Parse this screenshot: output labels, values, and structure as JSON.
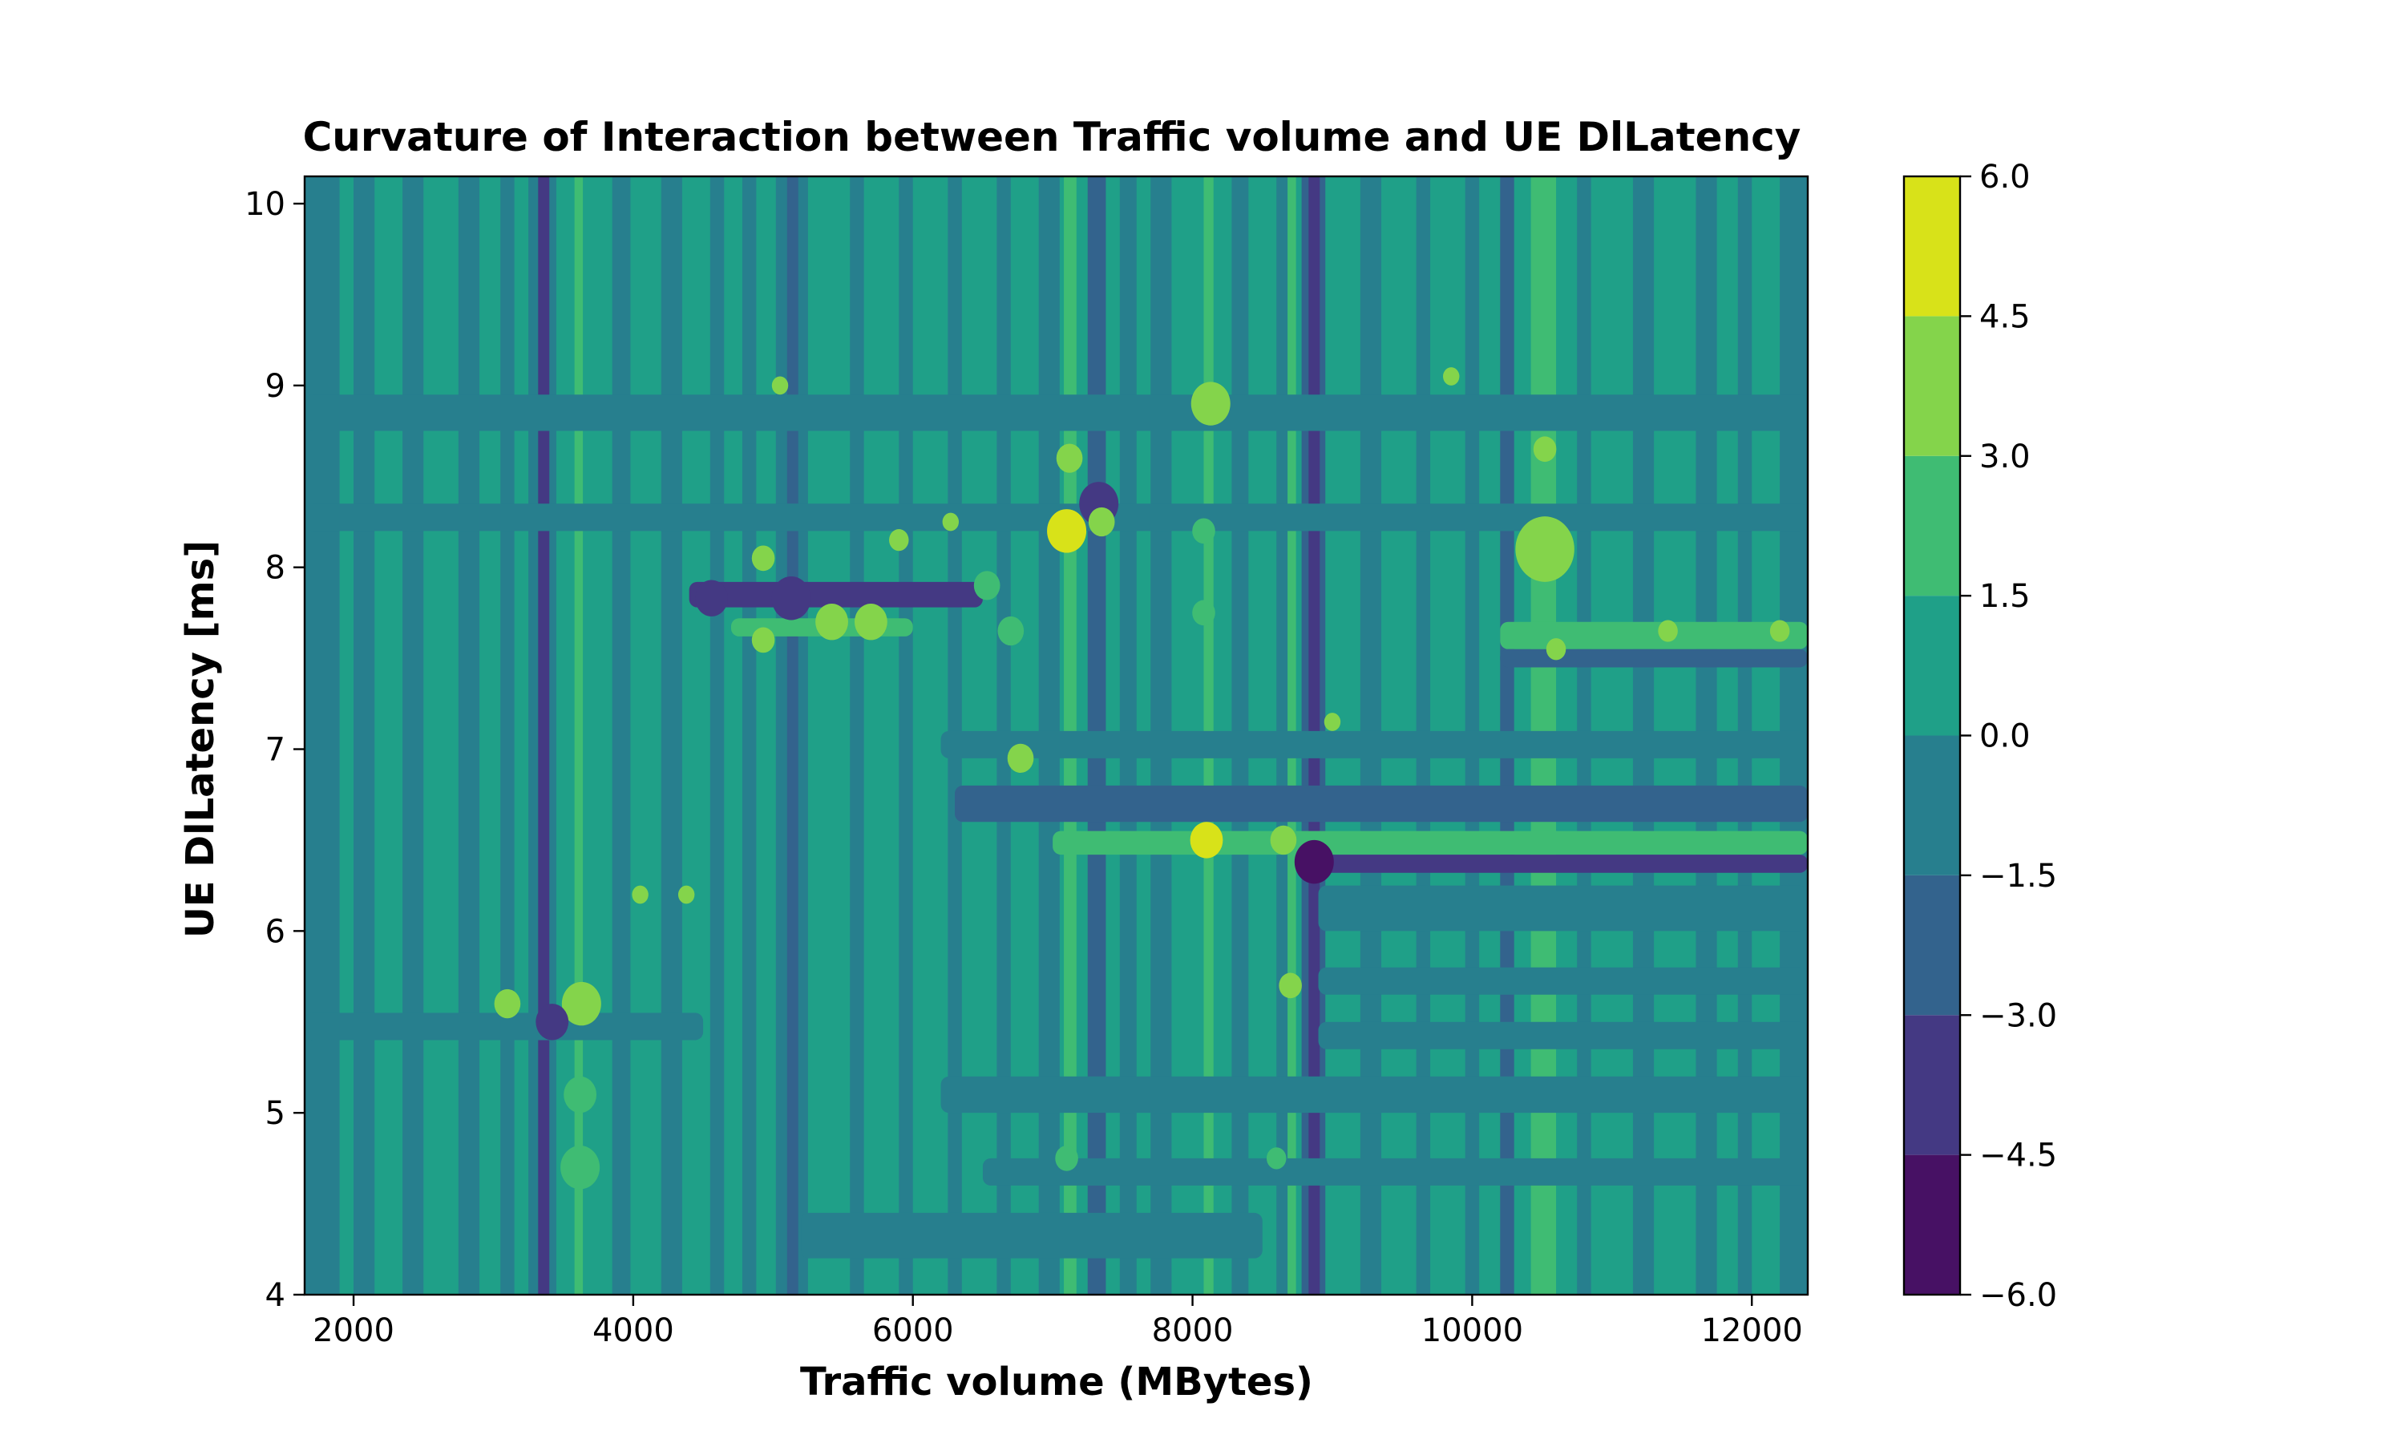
{
  "chart_data": {
    "type": "heatmap",
    "subtype": "filled-contour",
    "title": "Curvature of Interaction between Traffic volume and UE DlLatency",
    "xlabel": "Traffic volume (MBytes)",
    "ylabel": "UE DlLatency [ms]",
    "xlim": [
      1650,
      12400
    ],
    "ylim": [
      4.0,
      10.15
    ],
    "x_ticks": [
      2000,
      4000,
      6000,
      8000,
      10000,
      12000
    ],
    "y_ticks": [
      4,
      5,
      6,
      7,
      8,
      9,
      10
    ],
    "colorbar": {
      "levels": [
        -6.0,
        -4.5,
        -3.0,
        -1.5,
        0.0,
        1.5,
        3.0,
        4.5,
        6.0
      ],
      "tick_labels": [
        "−6.0",
        "−4.5",
        "−3.0",
        "−1.5",
        "0.0",
        "1.5",
        "3.0",
        "4.5",
        "6.0"
      ],
      "colors": [
        "#471164",
        "#443983",
        "#33638d",
        "#277f8e",
        "#1fa088",
        "#3fbc73",
        "#84d44b",
        "#d8e219"
      ]
    },
    "background_value": 0.7,
    "vertical_bands": [
      {
        "x0": 1650,
        "x1": 1900,
        "value": -0.5
      },
      {
        "x0": 2000,
        "x1": 2150,
        "value": -0.6
      },
      {
        "x0": 2350,
        "x1": 2500,
        "value": -0.8
      },
      {
        "x0": 2750,
        "x1": 2900,
        "value": -0.7
      },
      {
        "x0": 3050,
        "x1": 3150,
        "value": -0.6
      },
      {
        "x0": 3250,
        "x1": 3450,
        "value": -1.0
      },
      {
        "x0": 3320,
        "x1": 3400,
        "value": -3.2
      },
      {
        "x0": 3580,
        "x1": 3640,
        "value": 2.6
      },
      {
        "x0": 3850,
        "x1": 3980,
        "value": -0.6
      },
      {
        "x0": 4200,
        "x1": 4350,
        "value": -0.7
      },
      {
        "x0": 4550,
        "x1": 4650,
        "value": -1.0
      },
      {
        "x0": 4780,
        "x1": 4880,
        "value": -0.8
      },
      {
        "x0": 5020,
        "x1": 5250,
        "value": -1.0
      },
      {
        "x0": 5100,
        "x1": 5180,
        "value": -2.6
      },
      {
        "x0": 5550,
        "x1": 5650,
        "value": -0.8
      },
      {
        "x0": 5900,
        "x1": 6000,
        "value": -0.7
      },
      {
        "x0": 6250,
        "x1": 6350,
        "value": -0.8
      },
      {
        "x0": 6600,
        "x1": 6700,
        "value": -0.8
      },
      {
        "x0": 6900,
        "x1": 7050,
        "value": -1.0
      },
      {
        "x0": 7080,
        "x1": 7170,
        "value": 2.4
      },
      {
        "x0": 7250,
        "x1": 7380,
        "value": -2.6
      },
      {
        "x0": 7480,
        "x1": 7600,
        "value": -0.8
      },
      {
        "x0": 7700,
        "x1": 7850,
        "value": -0.9
      },
      {
        "x0": 8080,
        "x1": 8150,
        "value": 2.0
      },
      {
        "x0": 8280,
        "x1": 8400,
        "value": -1.0
      },
      {
        "x0": 8600,
        "x1": 8680,
        "value": -0.7
      },
      {
        "x0": 8680,
        "x1": 8740,
        "value": 2.7
      },
      {
        "x0": 8780,
        "x1": 8950,
        "value": -2.0
      },
      {
        "x0": 8830,
        "x1": 8910,
        "value": -4.0
      },
      {
        "x0": 9200,
        "x1": 9350,
        "value": -0.8
      },
      {
        "x0": 9600,
        "x1": 9700,
        "value": -0.8
      },
      {
        "x0": 9950,
        "x1": 10050,
        "value": -0.8
      },
      {
        "x0": 10200,
        "x1": 10300,
        "value": -1.8
      },
      {
        "x0": 10420,
        "x1": 10600,
        "value": 2.6
      },
      {
        "x0": 10750,
        "x1": 10850,
        "value": -0.9
      },
      {
        "x0": 11150,
        "x1": 11300,
        "value": -0.7
      },
      {
        "x0": 11600,
        "x1": 11750,
        "value": -0.8
      },
      {
        "x0": 11900,
        "x1": 12000,
        "value": -0.7
      },
      {
        "x0": 12200,
        "x1": 12400,
        "value": -0.8
      }
    ],
    "horizontal_bands": [
      {
        "y0": 8.75,
        "y1": 8.95,
        "x0": 1650,
        "x1": 12400,
        "value": -0.6
      },
      {
        "y0": 8.2,
        "y1": 8.35,
        "x0": 1650,
        "x1": 12400,
        "value": -0.5
      },
      {
        "y0": 7.78,
        "y1": 7.92,
        "x0": 4400,
        "x1": 6500,
        "value": -3.2
      },
      {
        "y0": 7.62,
        "y1": 7.72,
        "x0": 4700,
        "x1": 6000,
        "value": 1.8
      },
      {
        "y0": 7.55,
        "y1": 7.7,
        "x0": 10200,
        "x1": 12400,
        "value": 1.8
      },
      {
        "y0": 7.45,
        "y1": 7.55,
        "x0": 10200,
        "x1": 12400,
        "value": -1.6
      },
      {
        "y0": 6.95,
        "y1": 7.1,
        "x0": 6200,
        "x1": 12400,
        "value": -0.7
      },
      {
        "y0": 6.6,
        "y1": 6.8,
        "x0": 6300,
        "x1": 12400,
        "value": -1.8
      },
      {
        "y0": 6.42,
        "y1": 6.55,
        "x0": 7000,
        "x1": 12400,
        "value": 2.3
      },
      {
        "y0": 6.32,
        "y1": 6.42,
        "x0": 8750,
        "x1": 12400,
        "value": -3.8
      },
      {
        "y0": 6.0,
        "y1": 6.25,
        "x0": 8900,
        "x1": 12400,
        "value": -0.9
      },
      {
        "y0": 5.65,
        "y1": 5.8,
        "x0": 8900,
        "x1": 12400,
        "value": -0.8
      },
      {
        "y0": 5.4,
        "y1": 5.55,
        "x0": 1650,
        "x1": 4500,
        "value": -0.7
      },
      {
        "y0": 5.35,
        "y1": 5.5,
        "x0": 8900,
        "x1": 12400,
        "value": -0.8
      },
      {
        "y0": 5.0,
        "y1": 5.2,
        "x0": 6200,
        "x1": 12400,
        "value": -0.6
      },
      {
        "y0": 4.6,
        "y1": 4.75,
        "x0": 6500,
        "x1": 12400,
        "value": -0.6
      },
      {
        "y0": 4.2,
        "y1": 4.45,
        "x0": 5200,
        "x1": 8500,
        "value": -0.7
      }
    ],
    "spots": [
      {
        "x": 7100,
        "y": 8.2,
        "r": 0.12,
        "value": 4.8
      },
      {
        "x": 7330,
        "y": 8.35,
        "r": 0.12,
        "value": -3.5
      },
      {
        "x": 5130,
        "y": 7.83,
        "r": 0.12,
        "value": -3.8
      },
      {
        "x": 4560,
        "y": 7.83,
        "r": 0.1,
        "value": -3.5
      },
      {
        "x": 5420,
        "y": 7.7,
        "r": 0.1,
        "value": 3.2
      },
      {
        "x": 5700,
        "y": 7.7,
        "r": 0.1,
        "value": 3.0
      },
      {
        "x": 8100,
        "y": 6.5,
        "r": 0.1,
        "value": 4.6
      },
      {
        "x": 8650,
        "y": 6.5,
        "r": 0.08,
        "value": 4.0
      },
      {
        "x": 8870,
        "y": 6.38,
        "r": 0.12,
        "value": -4.8
      },
      {
        "x": 3630,
        "y": 5.6,
        "r": 0.12,
        "value": 3.6
      },
      {
        "x": 3420,
        "y": 5.5,
        "r": 0.1,
        "value": -3.2
      },
      {
        "x": 3100,
        "y": 5.6,
        "r": 0.08,
        "value": 3.0
      },
      {
        "x": 10520,
        "y": 8.1,
        "r": 0.18,
        "value": 4.0
      },
      {
        "x": 10520,
        "y": 8.65,
        "r": 0.07,
        "value": 3.2
      },
      {
        "x": 8130,
        "y": 8.9,
        "r": 0.12,
        "value": 3.4
      },
      {
        "x": 7120,
        "y": 8.6,
        "r": 0.08,
        "value": 3.3
      },
      {
        "x": 4930,
        "y": 8.05,
        "r": 0.07,
        "value": 3.0
      },
      {
        "x": 4930,
        "y": 7.6,
        "r": 0.07,
        "value": 3.0
      },
      {
        "x": 6700,
        "y": 7.65,
        "r": 0.08,
        "value": 2.8
      },
      {
        "x": 6530,
        "y": 7.9,
        "r": 0.08,
        "value": 2.6
      },
      {
        "x": 6770,
        "y": 6.95,
        "r": 0.08,
        "value": 3.1
      },
      {
        "x": 8080,
        "y": 7.75,
        "r": 0.07,
        "value": 2.8
      },
      {
        "x": 8080,
        "y": 8.2,
        "r": 0.07,
        "value": 2.8
      },
      {
        "x": 8700,
        "y": 5.7,
        "r": 0.07,
        "value": 3.2
      },
      {
        "x": 7100,
        "y": 4.75,
        "r": 0.07,
        "value": 2.8
      },
      {
        "x": 8600,
        "y": 4.75,
        "r": 0.06,
        "value": 2.8
      },
      {
        "x": 3620,
        "y": 4.7,
        "r": 0.12,
        "value": 2.4
      },
      {
        "x": 3620,
        "y": 5.1,
        "r": 0.1,
        "value": 2.6
      },
      {
        "x": 11400,
        "y": 7.65,
        "r": 0.06,
        "value": 3.0
      },
      {
        "x": 12200,
        "y": 7.65,
        "r": 0.06,
        "value": 3.0
      },
      {
        "x": 9000,
        "y": 7.15,
        "r": 0.05,
        "value": 3.2
      },
      {
        "x": 9850,
        "y": 9.05,
        "r": 0.05,
        "value": 3.0
      },
      {
        "x": 5050,
        "y": 9.0,
        "r": 0.05,
        "value": 3.2
      },
      {
        "x": 4380,
        "y": 6.2,
        "r": 0.05,
        "value": 3.1
      },
      {
        "x": 4050,
        "y": 6.2,
        "r": 0.05,
        "value": 3.1
      },
      {
        "x": 7350,
        "y": 8.25,
        "r": 0.08,
        "value": 3.0
      },
      {
        "x": 10600,
        "y": 7.55,
        "r": 0.06,
        "value": 3.0
      },
      {
        "x": 5900,
        "y": 8.15,
        "r": 0.06,
        "value": 3.0
      },
      {
        "x": 6270,
        "y": 8.25,
        "r": 0.05,
        "value": 3.0
      }
    ]
  }
}
